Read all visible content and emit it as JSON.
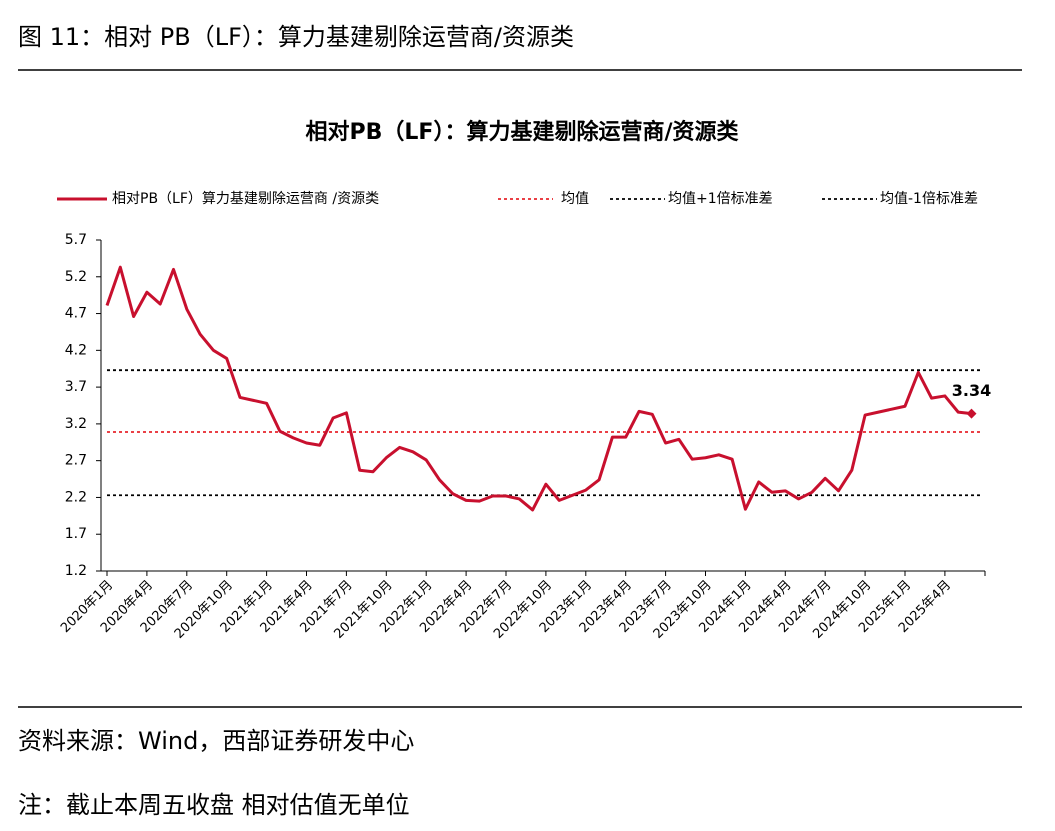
{
  "header": {
    "title": "图 11：相对 PB（LF）：算力基建剔除运营商/资源类"
  },
  "chart_data": {
    "type": "line",
    "title": "相对PB（LF）：算力基建剔除运营商/资源类",
    "categories": [
      "2020年1月",
      null,
      null,
      "2020年4月",
      null,
      null,
      "2020年7月",
      null,
      null,
      "2020年10月",
      null,
      null,
      "2021年1月",
      null,
      null,
      "2021年4月",
      null,
      null,
      "2021年7月",
      null,
      null,
      "2021年10月",
      null,
      null,
      "2022年1月",
      null,
      null,
      "2022年4月",
      null,
      null,
      "2022年7月",
      null,
      null,
      "2022年10月",
      null,
      null,
      "2023年1月",
      null,
      null,
      "2023年4月",
      null,
      null,
      "2023年7月",
      null,
      null,
      "2023年10月",
      null,
      null,
      "2024年1月",
      null,
      null,
      "2024年4月",
      null,
      null,
      "2024年7月",
      null,
      null,
      "2024年10月",
      null,
      null,
      "2025年1月",
      null,
      null,
      "2025年4月",
      null,
      null
    ],
    "series": [
      {
        "name": "相对PB（LF）算力基建剔除运营商 /资源类",
        "color": "#c8102e",
        "values": [
          4.81,
          5.33,
          4.66,
          4.99,
          4.83,
          5.3,
          4.76,
          4.42,
          4.2,
          4.09,
          3.56,
          3.52,
          3.48,
          3.1,
          3.01,
          2.94,
          2.91,
          3.28,
          3.35,
          2.57,
          2.55,
          2.74,
          2.88,
          2.82,
          2.71,
          2.44,
          2.25,
          2.16,
          2.15,
          2.22,
          2.22,
          2.18,
          2.03,
          2.38,
          2.16,
          2.23,
          2.3,
          2.44,
          3.02,
          3.02,
          3.37,
          3.33,
          2.94,
          2.99,
          2.72,
          2.74,
          2.78,
          2.72,
          2.04,
          2.41,
          2.27,
          2.29,
          2.18,
          2.27,
          2.46,
          2.29,
          2.57,
          3.32,
          3.36,
          3.4,
          3.44,
          3.9,
          3.55,
          3.58,
          3.36,
          3.34
        ]
      }
    ],
    "reference_lines": [
      {
        "name": "均值",
        "value": 3.09,
        "color": "#e8262c"
      },
      {
        "name": "均值+1倍标准差",
        "value": 3.93,
        "color": "#000000"
      },
      {
        "name": "均值-1倍标准差",
        "value": 2.23,
        "color": "#000000"
      }
    ],
    "ylim": [
      1.2,
      5.7
    ],
    "yticks": [
      1.2,
      1.7,
      2.2,
      2.7,
      3.2,
      3.7,
      4.2,
      4.7,
      5.2,
      5.7
    ],
    "grid": false
  },
  "footer": {
    "source": "资料来源：Wind，西部证券研发中心",
    "note": "注：截止本周五收盘 相对估值无单位"
  }
}
